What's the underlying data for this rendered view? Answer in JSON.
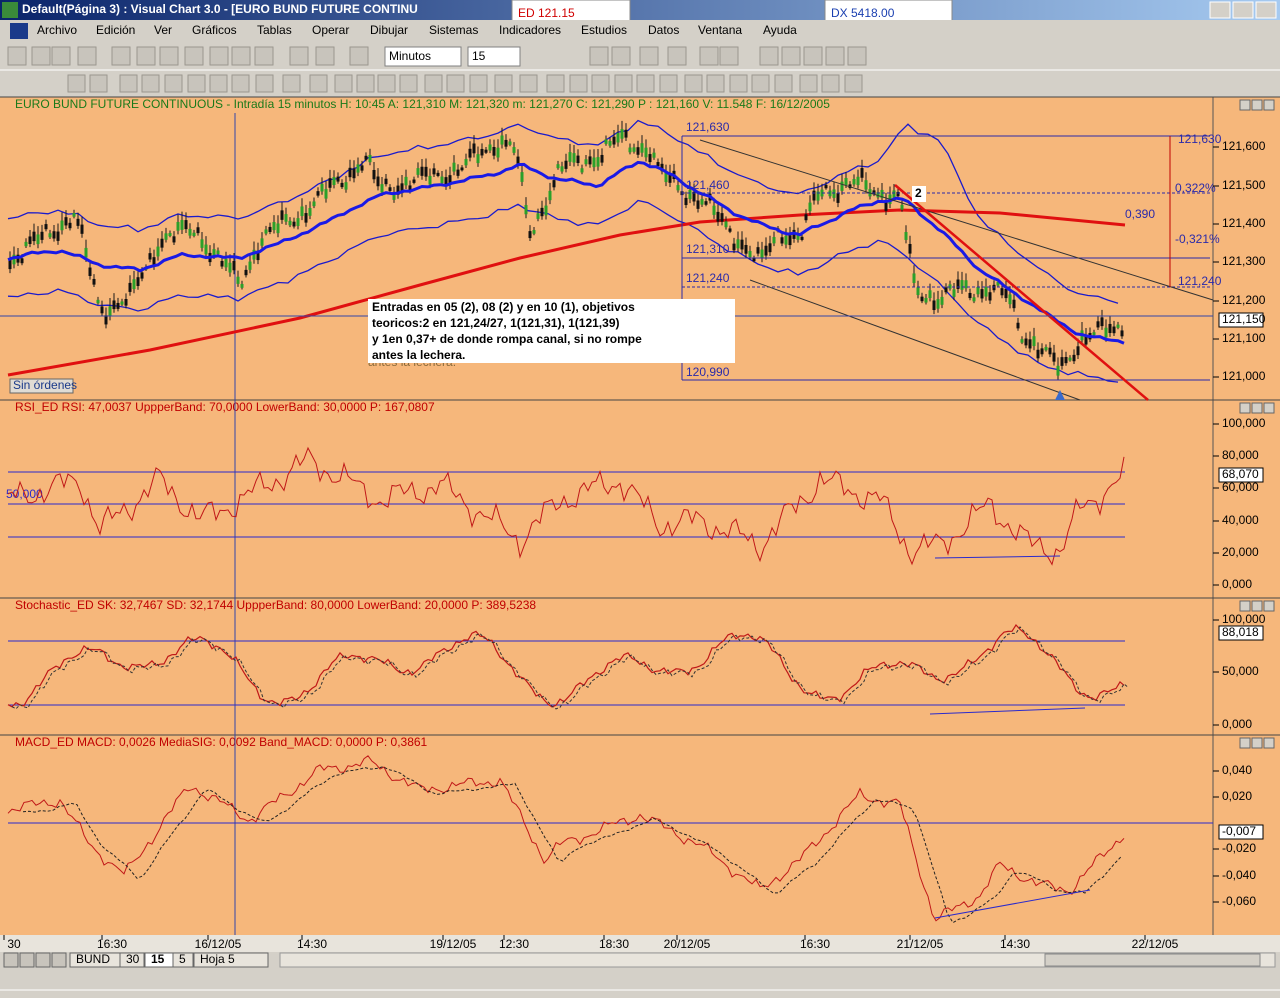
{
  "window": {
    "title": "Default(Página 3) : Visual Chart  3.0 - [EURO BUND FUTURE CONTINU",
    "ed_label": "ED  121.15",
    "dx_label": "DX  5418.00"
  },
  "menu": [
    "Archivo",
    "Edición",
    "Ver",
    "Gráficos",
    "Tablas",
    "Operar",
    "Dibujar",
    "Sistemas",
    "Indicadores",
    "Estudios",
    "Datos",
    "Ventana",
    "Ayuda"
  ],
  "toolbar": {
    "period": "Minutos",
    "interval": "15"
  },
  "price_panel": {
    "header": "EURO BUND FUTURE CONTINUOUS - Intradía 15 minutos  H: 10:45  A: 121,310  M: 121,320  m: 121,270  C: 121,290  P : 121,160  V: 11.548  F: 16/12/2005",
    "axis": [
      "121,600",
      "121,500",
      "121,400",
      "121,300",
      "121,200",
      "121,100",
      "121,000"
    ],
    "value_tag": "121,150",
    "level_labels": [
      "121,630",
      "121,460",
      "121,310",
      "121,240",
      "120,990"
    ],
    "ratio_label": "0,390",
    "pct_labels": [
      "0,322%",
      "-0,321%"
    ],
    "target_labels": [
      "121,630",
      "121,240"
    ],
    "marker": "2",
    "badge": "Sin órdenes",
    "note": [
      "Entradas en 05 (2), 08 (2)  y en 10 (1), objetivos",
      " teoricos:2 en 121,24/27, 1(121,31), 1(121,39)",
      "y 1en 0,37+ de donde rompa canal, si no rompe",
      " antes la lechera."
    ],
    "ghost_text": "antes la lechera."
  },
  "rsi_panel": {
    "header": "RSI_ED  RSI: 47,0037  UppperBand: 70,0000  LowerBand: 30,0000  P: 167,0807",
    "axis": [
      "100,000",
      "80,000",
      "60,000",
      "40,000",
      "20,000",
      "0,000"
    ],
    "value_tag": "68,070",
    "left_label": "50,000"
  },
  "stoch_panel": {
    "header": "Stochastic_ED  SK: 32,7467  SD: 32,1744  UppperBand: 80,0000  LowerBand: 20,0000  P: 389,5238",
    "axis": [
      "100,000",
      "50,000",
      "0,000"
    ],
    "value_tag": "88,018"
  },
  "macd_panel": {
    "header": "MACD_ED  MACD: 0,0026  MediaSIG: 0,0092  Band_MACD: 0,0000  P: 0,3861",
    "axis": [
      "0,040",
      "0,020",
      "-0,020",
      "-0,040",
      "-0,060"
    ],
    "value_tag": "-0,007"
  },
  "x_axis": [
    "30",
    "16:30",
    "16/12/05",
    "14:30",
    "19/12/05",
    "12:30",
    "18:30",
    "20/12/05",
    "16:30",
    "21/12/05",
    "14:30",
    "22/12/05"
  ],
  "tabs": [
    "BUND",
    "30",
    "15",
    "5",
    "Hoja 5"
  ]
}
